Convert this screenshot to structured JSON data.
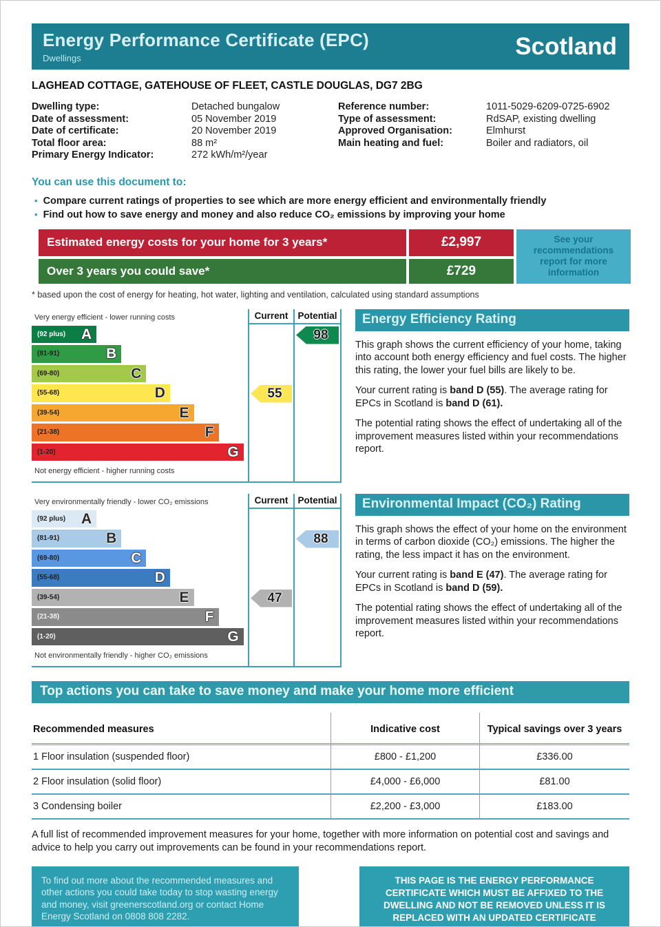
{
  "header": {
    "title": "Energy Performance Certificate (EPC)",
    "subtitle": "Dwellings",
    "region": "Scotland"
  },
  "address": "LAGHEAD COTTAGE, GATEHOUSE OF FLEET, CASTLE DOUGLAS, DG7 2BG",
  "property": {
    "left": [
      {
        "label": "Dwelling type:",
        "value": "Detached bungalow"
      },
      {
        "label": "Date of assessment:",
        "value": "05 November 2019"
      },
      {
        "label": "Date of certificate:",
        "value": "20 November 2019"
      },
      {
        "label": "Total floor area:",
        "value": "88 m²"
      },
      {
        "label": "Primary Energy Indicator:",
        "value": "272 kWh/m²/year"
      }
    ],
    "right": [
      {
        "label": "Reference number:",
        "value": "1011-5029-6209-0725-6902"
      },
      {
        "label": "Type of assessment:",
        "value": "RdSAP, existing dwelling"
      },
      {
        "label": "Approved Organisation:",
        "value": "Elmhurst"
      },
      {
        "label": "Main heating and fuel:",
        "value": "Boiler and radiators, oil"
      }
    ]
  },
  "usage": {
    "heading": "You can use this document to:",
    "bullets": [
      "Compare current ratings of properties to see which are more energy efficient and environmentally friendly",
      "Find out how to save energy and money and also reduce CO₂ emissions by improving your home"
    ]
  },
  "costs": {
    "row1_label": "Estimated energy costs for your home for 3 years*",
    "row1_value": "£2,997",
    "row2_label": "Over 3 years you could save*",
    "row2_value": "£729",
    "side_note": "See your recommendations report for more information",
    "footnote": "* based upon the cost of energy for heating, hot water, lighting and ventilation, calculated using standard assumptions"
  },
  "energy": {
    "section_title": "Energy Efficiency Rating",
    "col_current": "Current",
    "col_potential": "Potential",
    "top_caption": "Very energy efficient - lower running costs",
    "bottom_caption": "Not energy efficient - higher running costs",
    "bands": [
      {
        "letter": "A",
        "range": "(92 plus)",
        "color": "#0d7c45",
        "width": "30%"
      },
      {
        "letter": "B",
        "range": "(81-91)",
        "color": "#2f9b44",
        "width": "41.5%"
      },
      {
        "letter": "C",
        "range": "(69-80)",
        "color": "#a4c94a",
        "width": "53%"
      },
      {
        "letter": "D",
        "range": "(55-68)",
        "color": "#fee64e",
        "width": "64%"
      },
      {
        "letter": "E",
        "range": "(39-54)",
        "color": "#f6a72f",
        "width": "75%"
      },
      {
        "letter": "F",
        "range": "(21-38)",
        "color": "#ed7327",
        "width": "86.5%"
      },
      {
        "letter": "G",
        "range": "(1-20)",
        "color": "#e3242f",
        "width": "98%"
      }
    ],
    "current": {
      "value": "55",
      "color": "#fce654"
    },
    "potential": {
      "value": "98",
      "color": "#0f8a4e"
    },
    "p1": "This graph shows the current efficiency of your home, taking into account both energy efficiency and fuel costs. The higher this rating, the lower your fuel bills are likely to be.",
    "p2": {
      "s1": "Your current rating is ",
      "s2": "band D (55)",
      "s3": ". The average rating for EPCs in Scotland is ",
      "s4": "band D (61)."
    },
    "p3": "The potential rating shows the effect of undertaking all of the improvement measures listed within your recommendations report."
  },
  "environment": {
    "section_title": "Environmental Impact (CO₂) Rating",
    "col_current": "Current",
    "col_potential": "Potential",
    "top_caption": "Very environmentally friendly - lower CO₂ emissions",
    "bottom_caption": "Not environmentally friendly - higher CO₂ emissions",
    "bands": [
      {
        "letter": "A",
        "range": "(92 plus)",
        "color": "#dbe9f4",
        "width": "30%"
      },
      {
        "letter": "B",
        "range": "(81-91)",
        "color": "#a9cbe8",
        "width": "41.5%"
      },
      {
        "letter": "C",
        "range": "(69-80)",
        "color": "#5a97e3",
        "width": "53%"
      },
      {
        "letter": "D",
        "range": "(55-68)",
        "color": "#3b7bc0",
        "width": "64%"
      },
      {
        "letter": "E",
        "range": "(39-54)",
        "color": "#b2b2b2",
        "width": "75%"
      },
      {
        "letter": "F",
        "range": "(21-38)",
        "color": "#8b8b8b",
        "width": "86.5%"
      },
      {
        "letter": "G",
        "range": "(1-20)",
        "color": "#5f5f5f",
        "width": "98%"
      }
    ],
    "current": {
      "value": "47",
      "color": "#b2b2b2"
    },
    "potential": {
      "value": "88",
      "color": "#a9cbe8"
    },
    "p1": "This graph shows the effect of your home on the environment in terms of carbon dioxide (CO₂) emissions. The higher the rating, the less impact it has on the environment.",
    "p2": {
      "s1": "Your current rating is ",
      "s2": "band E (47)",
      "s3": ". The average rating for EPCs in Scotland is ",
      "s4": "band D (59)."
    },
    "p3": "The potential rating shows the effect of undertaking all of the improvement measures listed within your recommendations report."
  },
  "actions": {
    "heading": "Top actions you can take to save money and make your home more efficient",
    "headers": [
      "Recommended measures",
      "Indicative cost",
      "Typical savings over 3 years"
    ],
    "rows": [
      {
        "measure": "1 Floor insulation (suspended floor)",
        "cost": "£800 - £1,200",
        "saving": "£336.00"
      },
      {
        "measure": "2 Floor insulation (solid floor)",
        "cost": "£4,000 - £6,000",
        "saving": "£81.00"
      },
      {
        "measure": "3 Condensing boiler",
        "cost": "£2,200 - £3,000",
        "saving": "£183.00"
      }
    ],
    "note": "A full list of recommended improvement measures for your home, together with more information on potential cost and savings and advice to help you carry out improvements can be found in your recommendations report."
  },
  "footer": {
    "left_box": "To find out more about the recommended measures and other actions you could take today to stop wasting energy and money, visit greenerscotland.org or contact Home Energy Scotland on 0808 808 2282.",
    "right_box": "THIS PAGE IS THE ENERGY PERFORMANCE CERTIFICATE WHICH MUST BE AFFIXED TO THE DWELLING AND NOT BE REMOVED UNLESS IT IS REPLACED WITH AN UPDATED CERTIFICATE"
  },
  "colors": {
    "masthead_teal": "#1d7e92",
    "section_teal": "#2b96a8",
    "banner_red": "#bd2136",
    "banner_green": "#35783a",
    "note_blue": "#47aec8",
    "chart_line_teal": "#3aa3b4"
  },
  "chart_data": [
    {
      "type": "bar",
      "title": "Energy Efficiency Rating",
      "categories": [
        "A",
        "B",
        "C",
        "D",
        "E",
        "F",
        "G"
      ],
      "band_ranges": [
        "92 plus",
        "81-91",
        "69-80",
        "55-68",
        "39-54",
        "21-38",
        "1-20"
      ],
      "band_colors": [
        "#0d7c45",
        "#2f9b44",
        "#a4c94a",
        "#fee64e",
        "#f6a72f",
        "#ed7327",
        "#e3242f"
      ],
      "legend": [
        "Current",
        "Potential"
      ],
      "current": 55,
      "current_band": "D",
      "potential": 98,
      "potential_band": "A",
      "scotland_average": 61,
      "scotland_average_band": "D",
      "axis_top_label": "Very energy efficient - lower running costs",
      "axis_bottom_label": "Not energy efficient - higher running costs"
    },
    {
      "type": "bar",
      "title": "Environmental Impact (CO₂) Rating",
      "categories": [
        "A",
        "B",
        "C",
        "D",
        "E",
        "F",
        "G"
      ],
      "band_ranges": [
        "92 plus",
        "81-91",
        "69-80",
        "55-68",
        "39-54",
        "21-38",
        "1-20"
      ],
      "band_colors": [
        "#dbe9f4",
        "#a9cbe8",
        "#5a97e3",
        "#3b7bc0",
        "#b2b2b2",
        "#8b8b8b",
        "#5f5f5f"
      ],
      "legend": [
        "Current",
        "Potential"
      ],
      "current": 47,
      "current_band": "E",
      "potential": 88,
      "potential_band": "B",
      "scotland_average": 59,
      "scotland_average_band": "D",
      "axis_top_label": "Very environmentally friendly - lower CO₂ emissions",
      "axis_bottom_label": "Not environmentally friendly - higher CO₂ emissions"
    }
  ]
}
